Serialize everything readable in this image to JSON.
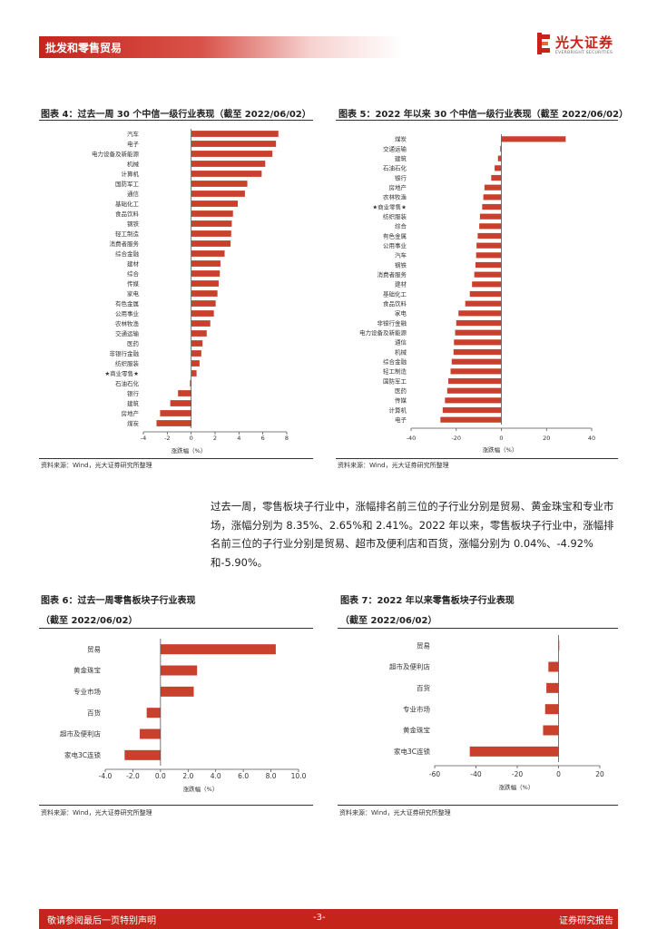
{
  "header": {
    "title": "批发和零售贸易"
  },
  "logo": {
    "name": "光大证券",
    "sub": "EVERBRIGHT SECURITIES"
  },
  "colors": {
    "accent": "#c5241b",
    "bar": "#c9412c"
  },
  "figures": {
    "fig4": {
      "title": "图表 4：过去一周 30 个中信一级行业表现（截至 2022/06/02）",
      "source": "资料来源：Wind，光大证券研究所整理"
    },
    "fig5": {
      "title": "图表 5：2022 年以来 30 个中信一级行业表现（截至 2022/06/02）",
      "source": "资料来源：Wind，光大证券研究所整理"
    },
    "fig6": {
      "title_line1": "图表 6：过去一周零售板块子行业表现",
      "title_line2": "（截至 2022/06/02）",
      "source": "资料来源：Wind，光大证券研究所整理"
    },
    "fig7": {
      "title_line1": "图表 7：2022 年以来零售板块子行业表现",
      "title_line2": "（截至 2022/06/02）",
      "source": "资料来源：Wind，光大证券研究所整理"
    }
  },
  "paragraph": "过去一周，零售板块子行业中，涨幅排名前三位的子行业分别是贸易、黄金珠宝和专业市场，涨幅分别为 8.35%、2.65%和 2.41%。2022 年以来，零售板块子行业中，涨幅排名前三位的子行业分别是贸易、超市及便利店和百货，涨幅分别为 0.04%、-4.92%和-5.90%。",
  "chart_data": [
    {
      "id": "fig4",
      "type": "bar",
      "orientation": "horizontal",
      "categories": [
        "汽车",
        "电子",
        "电力设备及新能源",
        "机械",
        "计算机",
        "国防军工",
        "通信",
        "基础化工",
        "食品饮料",
        "钢铁",
        "轻工制造",
        "消费者服务",
        "综合金融",
        "建材",
        "综合",
        "传媒",
        "家电",
        "有色金属",
        "公用事业",
        "农林牧渔",
        "交通运输",
        "医药",
        "非银行金融",
        "纺织服装",
        "★商业零售★",
        "石油石化",
        "银行",
        "建筑",
        "房地产",
        "煤炭"
      ],
      "values": [
        7.3,
        7.1,
        6.8,
        6.2,
        5.9,
        4.7,
        4.5,
        3.9,
        3.5,
        3.4,
        3.35,
        3.3,
        2.8,
        2.45,
        2.4,
        2.3,
        2.2,
        2.05,
        1.9,
        1.6,
        1.3,
        0.95,
        0.85,
        0.7,
        0.45,
        -0.1,
        -1.1,
        -1.75,
        -2.6,
        -2.9
      ],
      "xlabel": "涨跌幅（%）",
      "xlim": [
        -4,
        8
      ],
      "xticks": [
        -4,
        -2,
        0,
        2,
        4,
        6,
        8
      ]
    },
    {
      "id": "fig5",
      "type": "bar",
      "orientation": "horizontal",
      "categories": [
        "煤炭",
        "交通运输",
        "建筑",
        "石油石化",
        "银行",
        "房地产",
        "农林牧渔",
        "★商业零售★",
        "纺织服装",
        "综合",
        "有色金属",
        "公用事业",
        "汽车",
        "钢铁",
        "消费者服务",
        "建材",
        "基础化工",
        "食品饮料",
        "家电",
        "非银行金融",
        "电力设备及新能源",
        "通信",
        "机械",
        "综合金融",
        "轻工制造",
        "国防军工",
        "医药",
        "传媒",
        "计算机",
        "电子"
      ],
      "values": [
        28.5,
        -0.5,
        -1.5,
        -3.0,
        -4.5,
        -7.5,
        -8.0,
        -8.5,
        -9.5,
        -9.8,
        -10.5,
        -11.0,
        -11.2,
        -11.5,
        -12.0,
        -13.0,
        -14.0,
        -16.0,
        -19.0,
        -20.0,
        -20.5,
        -21.0,
        -21.2,
        -22.0,
        -22.5,
        -23.5,
        -24.0,
        -25.0,
        -26.0,
        -27.0
      ],
      "xlabel": "涨跌幅（%）",
      "xlim": [
        -40,
        40
      ],
      "xticks": [
        -40,
        -20,
        0,
        20,
        40
      ]
    },
    {
      "id": "fig6",
      "type": "bar",
      "orientation": "horizontal",
      "categories": [
        "贸易",
        "黄金珠宝",
        "专业市场",
        "百货",
        "超市及便利店",
        "家电3C连锁"
      ],
      "values": [
        8.35,
        2.65,
        2.41,
        -1.0,
        -1.5,
        -2.6
      ],
      "xlabel": "涨跌幅（%）",
      "xlim": [
        -4,
        10
      ],
      "xticks": [
        -4.0,
        -2.0,
        0.0,
        2.0,
        4.0,
        6.0,
        8.0,
        10.0
      ],
      "tick_format": "fixed1"
    },
    {
      "id": "fig7",
      "type": "bar",
      "orientation": "horizontal",
      "categories": [
        "贸易",
        "超市及便利店",
        "百货",
        "专业市场",
        "黄金珠宝",
        "家电3C连锁"
      ],
      "values": [
        0.04,
        -4.92,
        -5.9,
        -6.5,
        -7.5,
        -43.0
      ],
      "xlabel": "涨跌幅（%）",
      "xlim": [
        -60,
        20
      ],
      "xticks": [
        -60,
        -40,
        -20,
        0,
        20
      ]
    }
  ],
  "footer": {
    "left": "敬请参阅最后一页特别声明",
    "page": "-3-",
    "right": "证券研究报告"
  }
}
